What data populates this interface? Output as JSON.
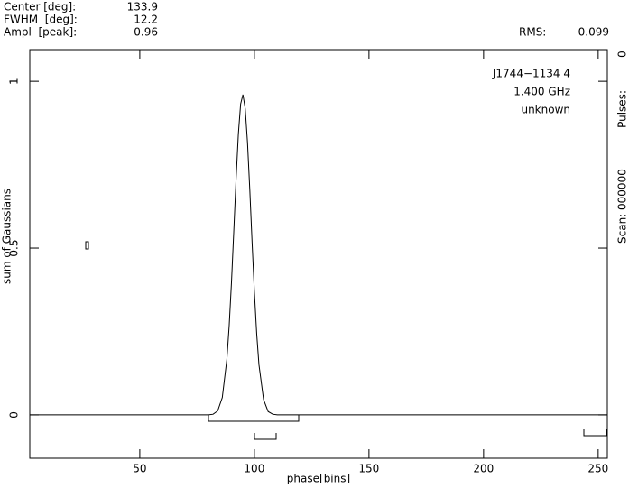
{
  "info": {
    "center_label": "Center [deg]:",
    "center": 133.9,
    "fwhm_label": "FWHM  [deg]:",
    "fwhm": 12.2,
    "ampl_label": "Ampl  [peak]:",
    "ampl": 0.96,
    "rms_label": "RMS:",
    "rms": 0.099,
    "source": "J1744−1134 4",
    "frequency": "1.400 GHz",
    "site": "unknown",
    "scan": "Scan: 000000",
    "pulses_label": "Pulses:",
    "pulses": 0
  },
  "chart_data": {
    "type": "line",
    "x_label": "phase[bins]",
    "y_label": "sum of Gaussians",
    "xlim": [
      2,
      254
    ],
    "ylim": [
      -0.13,
      1.095
    ],
    "xticks": [
      50,
      100,
      150,
      200,
      250
    ],
    "yticks": [
      0,
      0.5,
      1
    ],
    "series": [
      {
        "name": "sum of Gaussians",
        "color": "#000000",
        "x": [
          2,
          80,
          82,
          84,
          86,
          88,
          89,
          90,
          91,
          92,
          93,
          94,
          95,
          96,
          97,
          98,
          99,
          100,
          101,
          102,
          104,
          106,
          108,
          110,
          254
        ],
        "values": [
          0,
          0,
          0.002,
          0.012,
          0.052,
          0.167,
          0.267,
          0.397,
          0.549,
          0.705,
          0.841,
          0.932,
          0.96,
          0.918,
          0.816,
          0.675,
          0.517,
          0.369,
          0.244,
          0.15,
          0.046,
          0.01,
          0.002,
          0,
          0
        ]
      }
    ]
  }
}
